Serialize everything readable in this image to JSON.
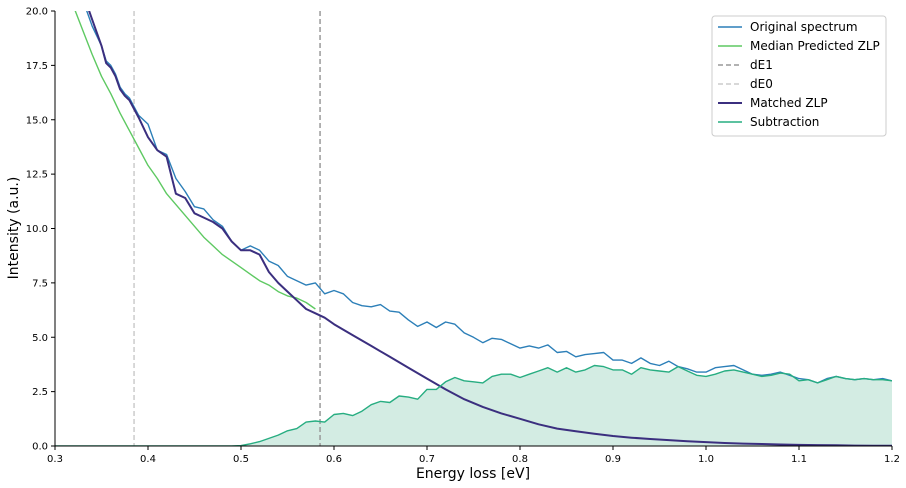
{
  "chart_data": {
    "type": "line",
    "xlabel": "Energy loss [eV]",
    "ylabel": "Intensity (a.u.)",
    "xlim": [
      0.3,
      1.2
    ],
    "ylim": [
      0,
      20
    ],
    "xticks": [
      "0.3",
      "0.4",
      "0.5",
      "0.6",
      "0.7",
      "0.8",
      "0.9",
      "1.0",
      "1.1",
      "1.2"
    ],
    "yticks": [
      "0.0",
      "2.5",
      "5.0",
      "7.5",
      "10.0",
      "12.5",
      "15.0",
      "17.5",
      "20.0"
    ],
    "legend_position": "top-right",
    "grid": false,
    "colors": {
      "original": "#2c7fb8",
      "median_zlp": "#5ec962",
      "de1": "#999999",
      "de0": "#cccccc",
      "matched": "#3b2f7f",
      "subtraction": "#27ad81",
      "subtraction_fill": "#d3ece3"
    },
    "vlines": [
      {
        "key": "de1",
        "x": 0.585,
        "label": "dE1"
      },
      {
        "key": "de0",
        "x": 0.385,
        "label": "dE0"
      }
    ],
    "legend": [
      {
        "key": "original",
        "label": "Original spectrum",
        "style": "solid"
      },
      {
        "key": "median_zlp",
        "label": "Median Predicted ZLP",
        "style": "solid"
      },
      {
        "key": "de1",
        "label": "dE1",
        "style": "dashed"
      },
      {
        "key": "de0",
        "label": "dE0",
        "style": "dashed"
      },
      {
        "key": "matched",
        "label": "Matched ZLP",
        "style": "solid"
      },
      {
        "key": "subtraction",
        "label": "Subtraction",
        "style": "solid"
      }
    ],
    "series": [
      {
        "key": "original",
        "x": [
          0.33,
          0.34,
          0.35,
          0.355,
          0.36,
          0.365,
          0.37,
          0.375,
          0.38,
          0.39,
          0.4,
          0.41,
          0.42,
          0.43,
          0.44,
          0.45,
          0.46,
          0.47,
          0.48,
          0.49,
          0.5,
          0.51,
          0.52,
          0.53,
          0.54,
          0.55,
          0.56,
          0.57,
          0.58,
          0.59,
          0.6,
          0.61,
          0.62,
          0.63,
          0.64,
          0.65,
          0.66,
          0.67,
          0.68,
          0.69,
          0.7,
          0.71,
          0.72,
          0.73,
          0.74,
          0.75,
          0.76,
          0.77,
          0.78,
          0.79,
          0.8,
          0.81,
          0.82,
          0.83,
          0.84,
          0.85,
          0.86,
          0.87,
          0.88,
          0.89,
          0.9,
          0.91,
          0.92,
          0.93,
          0.94,
          0.95,
          0.96,
          0.97,
          0.98,
          0.99,
          1.0,
          1.01,
          1.02,
          1.03,
          1.04,
          1.05,
          1.06,
          1.07,
          1.08,
          1.09,
          1.1,
          1.11,
          1.12,
          1.13,
          1.14,
          1.15,
          1.16,
          1.17,
          1.18,
          1.19,
          1.2
        ],
        "y": [
          20.5,
          19.3,
          18.4,
          17.7,
          17.5,
          17.1,
          16.5,
          16.2,
          16.0,
          15.2,
          14.8,
          13.6,
          13.4,
          12.3,
          11.7,
          11.0,
          10.9,
          10.4,
          10.1,
          9.4,
          9.0,
          9.2,
          9.0,
          8.5,
          8.3,
          7.8,
          7.6,
          7.4,
          7.5,
          7.0,
          7.15,
          7.0,
          6.6,
          6.45,
          6.4,
          6.5,
          6.2,
          6.15,
          5.8,
          5.5,
          5.7,
          5.45,
          5.7,
          5.6,
          5.2,
          5.0,
          4.75,
          4.95,
          4.9,
          4.7,
          4.5,
          4.6,
          4.5,
          4.65,
          4.3,
          4.35,
          4.1,
          4.2,
          4.25,
          4.3,
          3.95,
          3.95,
          3.8,
          4.05,
          3.8,
          3.7,
          3.9,
          3.65,
          3.55,
          3.4,
          3.4,
          3.6,
          3.65,
          3.7,
          3.5,
          3.3,
          3.25,
          3.3,
          3.4,
          3.25,
          3.1,
          3.05,
          2.9,
          3.1,
          3.2,
          3.1,
          3.05,
          3.1,
          3.05,
          3.1,
          3.0
        ]
      },
      {
        "key": "median_zlp",
        "x": [
          0.32,
          0.33,
          0.34,
          0.35,
          0.36,
          0.37,
          0.38,
          0.39,
          0.4,
          0.41,
          0.42,
          0.43,
          0.44,
          0.45,
          0.46,
          0.47,
          0.48,
          0.49,
          0.5,
          0.51,
          0.52,
          0.53,
          0.54,
          0.55,
          0.56,
          0.57,
          0.58
        ],
        "y": [
          20.2,
          19.1,
          18.0,
          17.0,
          16.2,
          15.3,
          14.5,
          13.7,
          12.9,
          12.3,
          11.6,
          11.1,
          10.6,
          10.1,
          9.6,
          9.2,
          8.8,
          8.5,
          8.2,
          7.9,
          7.6,
          7.4,
          7.1,
          6.9,
          6.8,
          6.6,
          6.3
        ]
      },
      {
        "key": "matched",
        "x": [
          0.335,
          0.34,
          0.35,
          0.355,
          0.36,
          0.365,
          0.37,
          0.375,
          0.38,
          0.39,
          0.4,
          0.41,
          0.42,
          0.43,
          0.44,
          0.45,
          0.46,
          0.47,
          0.48,
          0.49,
          0.5,
          0.51,
          0.52,
          0.53,
          0.54,
          0.55,
          0.56,
          0.57,
          0.58,
          0.59,
          0.6,
          0.62,
          0.64,
          0.66,
          0.68,
          0.7,
          0.72,
          0.74,
          0.76,
          0.78,
          0.8,
          0.82,
          0.84,
          0.86,
          0.88,
          0.9,
          0.92,
          0.94,
          0.96,
          0.98,
          1.0,
          1.02,
          1.04,
          1.06,
          1.08,
          1.1,
          1.12,
          1.14,
          1.16,
          1.18,
          1.2
        ],
        "y": [
          20.2,
          19.6,
          18.4,
          17.6,
          17.4,
          17.0,
          16.4,
          16.1,
          15.9,
          15.1,
          14.2,
          13.6,
          13.3,
          11.6,
          11.4,
          10.7,
          10.5,
          10.3,
          10.0,
          9.4,
          9.0,
          9.0,
          8.8,
          8.0,
          7.5,
          7.1,
          6.7,
          6.3,
          6.1,
          5.9,
          5.6,
          5.1,
          4.6,
          4.1,
          3.6,
          3.1,
          2.6,
          2.15,
          1.8,
          1.5,
          1.25,
          1.0,
          0.8,
          0.68,
          0.56,
          0.46,
          0.38,
          0.32,
          0.27,
          0.22,
          0.18,
          0.14,
          0.11,
          0.09,
          0.07,
          0.05,
          0.04,
          0.03,
          0.02,
          0.01,
          0.01
        ]
      },
      {
        "key": "subtraction",
        "x": [
          0.3,
          0.4,
          0.49,
          0.5,
          0.51,
          0.52,
          0.53,
          0.54,
          0.55,
          0.56,
          0.57,
          0.58,
          0.59,
          0.6,
          0.61,
          0.62,
          0.63,
          0.64,
          0.65,
          0.66,
          0.67,
          0.68,
          0.69,
          0.7,
          0.71,
          0.72,
          0.73,
          0.74,
          0.75,
          0.76,
          0.77,
          0.78,
          0.79,
          0.8,
          0.81,
          0.82,
          0.83,
          0.84,
          0.85,
          0.86,
          0.87,
          0.88,
          0.89,
          0.9,
          0.91,
          0.92,
          0.93,
          0.94,
          0.95,
          0.96,
          0.97,
          0.98,
          0.99,
          1.0,
          1.01,
          1.02,
          1.03,
          1.04,
          1.05,
          1.06,
          1.07,
          1.08,
          1.09,
          1.1,
          1.11,
          1.12,
          1.13,
          1.14,
          1.15,
          1.16,
          1.17,
          1.18,
          1.19,
          1.2
        ],
        "y": [
          0,
          0,
          0,
          0.02,
          0.1,
          0.2,
          0.35,
          0.5,
          0.7,
          0.8,
          1.1,
          1.15,
          1.1,
          1.45,
          1.5,
          1.4,
          1.6,
          1.9,
          2.05,
          2.0,
          2.3,
          2.25,
          2.15,
          2.6,
          2.6,
          2.95,
          3.15,
          3.0,
          2.95,
          2.9,
          3.2,
          3.3,
          3.3,
          3.15,
          3.3,
          3.45,
          3.6,
          3.4,
          3.6,
          3.4,
          3.5,
          3.7,
          3.65,
          3.5,
          3.5,
          3.3,
          3.6,
          3.5,
          3.45,
          3.4,
          3.65,
          3.45,
          3.25,
          3.2,
          3.3,
          3.45,
          3.5,
          3.4,
          3.3,
          3.2,
          3.25,
          3.35,
          3.3,
          3.0,
          3.05,
          2.9,
          3.05,
          3.2,
          3.1,
          3.05,
          3.1,
          3.05,
          3.05,
          3.0
        ]
      }
    ]
  }
}
